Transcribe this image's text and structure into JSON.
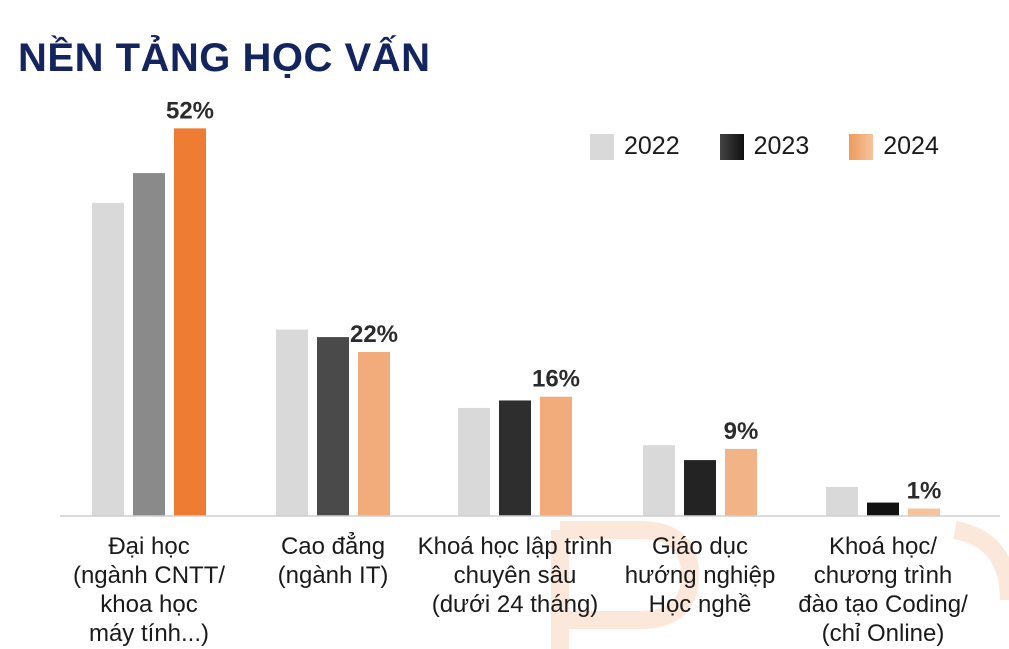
{
  "page": {
    "title": "NỀN TẢNG HỌC VẤN"
  },
  "chart_data": {
    "type": "bar",
    "title": "NỀN TẢNG HỌC VẤN",
    "categories": [
      [
        "Đại học",
        "(ngành CNTT/",
        "khoa học",
        "máy tính...)"
      ],
      [
        "Cao đẳng",
        "(ngành IT)"
      ],
      [
        "Khoá học lập trình",
        "chuyên sâu",
        "(dưới 24 tháng)"
      ],
      [
        "Giáo dục",
        "hướng nghiệp",
        "Học nghề"
      ],
      [
        "Khoá học/",
        "chương trình",
        "đào tạo Coding/",
        "(chỉ Online)"
      ]
    ],
    "series": [
      {
        "name": "2022",
        "values": [
          42,
          25,
          14.5,
          9.5,
          3.9
        ]
      },
      {
        "name": "2023",
        "values": [
          46,
          24,
          15.5,
          7.5,
          1.8
        ]
      },
      {
        "name": "2024",
        "values": [
          52,
          22,
          16,
          9,
          1
        ]
      }
    ],
    "data_labels": [
      "52%",
      "22%",
      "16%",
      "9%",
      "1%"
    ],
    "ylim": [
      0,
      55
    ],
    "grid": false,
    "legend_position": "top-right",
    "colors": {
      "2022": "#d9d9d9",
      "2023": [
        "#8a8a8a",
        "#4a4a4a",
        "#2e2e2e",
        "#232323",
        "#111111"
      ],
      "2024": [
        "#ee7d33",
        "#f2ab7a",
        "#f2ab7a",
        "#f2b487",
        "#f5c39c"
      ]
    }
  },
  "legend": {
    "items": [
      {
        "label": "2022"
      },
      {
        "label": "2023"
      },
      {
        "label": "2024"
      }
    ]
  }
}
